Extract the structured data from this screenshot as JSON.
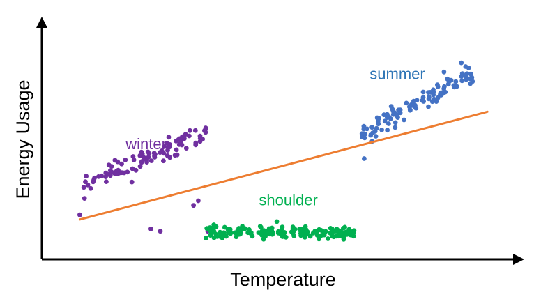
{
  "chart_data": {
    "type": "scatter",
    "title": "",
    "xlabel": "Temperature",
    "ylabel": "Energy Usage",
    "xlim": [
      0,
      100
    ],
    "ylim": [
      0,
      100
    ],
    "grid": false,
    "legend": "none",
    "ticks": "none",
    "series": [
      {
        "name": "winter",
        "color": "#7030A0",
        "trend": {
          "x_start": 8,
          "y_start": 32,
          "x_end": 35,
          "y_end": 54
        },
        "spread": 2.4,
        "count": 95,
        "outliers": [
          [
            8,
            19
          ],
          [
            19,
            33
          ],
          [
            23,
            13
          ],
          [
            25,
            12
          ],
          [
            35,
            12
          ],
          [
            32,
            23
          ],
          [
            33,
            25
          ],
          [
            27,
            49
          ],
          [
            9,
            26
          ]
        ]
      },
      {
        "name": "shoulder",
        "color": "#00B050",
        "trend": {
          "x_start": 35,
          "y_start": 12,
          "x_end": 66,
          "y_end": 11
        },
        "spread": 1.2,
        "count": 170,
        "outliers": []
      },
      {
        "name": "summer",
        "color": "#4472C4",
        "trend": {
          "x_start": 67,
          "y_start": 53,
          "x_end": 91,
          "y_end": 80
        },
        "spread": 2.4,
        "count": 105,
        "outliers": [
          [
            68,
            43
          ]
        ]
      }
    ],
    "regression_line": {
      "color": "#ED7D31",
      "x_start": 8,
      "y_start": 17,
      "x_end": 94,
      "y_end": 63
    },
    "annotations": [
      {
        "text": "winter",
        "x": 22,
        "y": 47,
        "color": "#7030A0"
      },
      {
        "text": "shoulder",
        "x": 52,
        "y": 23,
        "color": "#00B050"
      },
      {
        "text": "summer",
        "x": 75,
        "y": 77,
        "color": "#2E75B6"
      }
    ]
  }
}
